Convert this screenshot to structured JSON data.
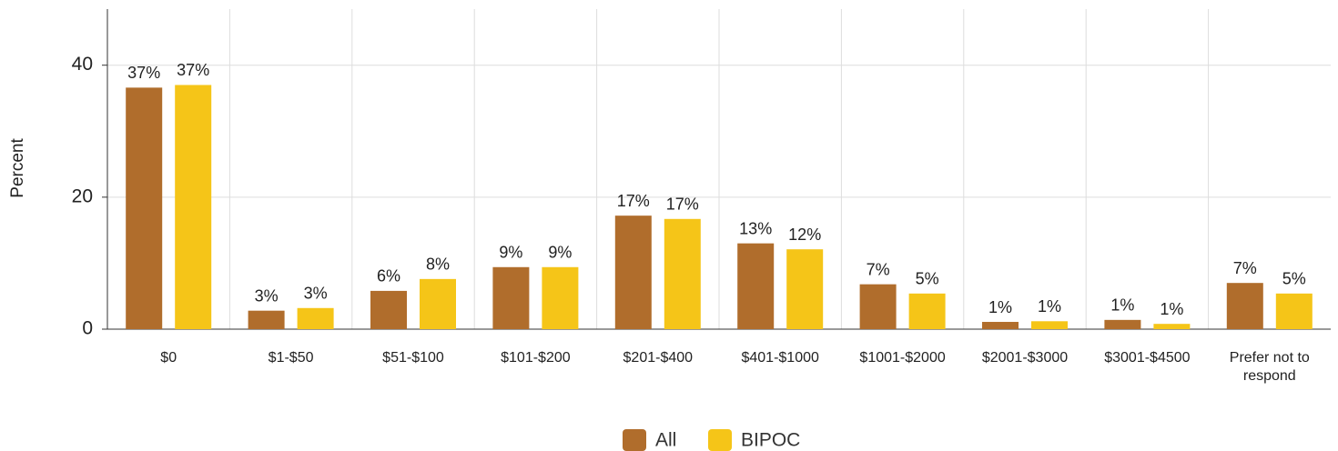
{
  "chart_data": {
    "type": "bar",
    "y_label": "Percent",
    "categories": [
      "$0",
      "$1-$50",
      "$51-$100",
      "$101-$200",
      "$201-$400",
      "$401-$1000",
      "$1001-$2000",
      "$2001-$3000",
      "$3001-$4500",
      "Prefer not to respond"
    ],
    "series": [
      {
        "name": "All",
        "color": "#b06d2c",
        "values": [
          36.6,
          2.8,
          5.8,
          9.4,
          17.2,
          13.0,
          6.8,
          1.1,
          1.4,
          7.0
        ],
        "value_labels": [
          "37%",
          "3%",
          "6%",
          "9%",
          "17%",
          "13%",
          "7%",
          "1%",
          "1%",
          "7%"
        ]
      },
      {
        "name": "BIPOC",
        "color": "#f5c518",
        "values": [
          37.0,
          3.2,
          7.6,
          9.4,
          16.7,
          12.1,
          5.4,
          1.2,
          0.8,
          5.4
        ],
        "value_labels": [
          "37%",
          "3%",
          "8%",
          "9%",
          "17%",
          "12%",
          "5%",
          "1%",
          "1%",
          "5%"
        ]
      }
    ],
    "ylim": [
      0,
      48.5
    ],
    "yticks": [
      0,
      20,
      40
    ],
    "grid": true
  }
}
